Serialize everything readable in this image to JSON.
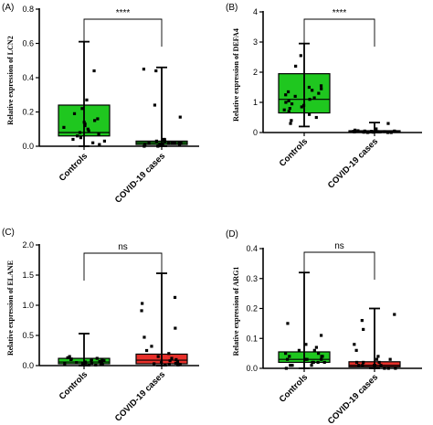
{
  "chart_data": [
    {
      "type": "box",
      "panel_label": "(A)",
      "ylabel": "Relative expression of LCN2",
      "ylim": [
        0,
        0.8
      ],
      "yticks": [
        "0.0",
        "0.2",
        "0.4",
        "0.6",
        "0.8"
      ],
      "ytick_values": [
        0,
        0.2,
        0.4,
        0.6,
        0.8
      ],
      "significance": "****",
      "categories": [
        "Controls",
        "COVID-19 cases"
      ],
      "groups": [
        {
          "name": "Controls",
          "color": "#1fc71f",
          "min": 0.0,
          "q1": 0.06,
          "median": 0.08,
          "q3": 0.24,
          "max": 0.61,
          "points": [
            0.44,
            0.27,
            0.22,
            0.19,
            0.16,
            0.15,
            0.14,
            0.13,
            0.12,
            0.11,
            0.1,
            0.09,
            0.08,
            0.07,
            0.06,
            0.05,
            0.04,
            0.03,
            0.02,
            0.01
          ]
        },
        {
          "name": "COVID-19 cases",
          "color": "#1fc71f",
          "min": 0.0,
          "q1": 0.01,
          "median": 0.02,
          "q3": 0.03,
          "max": 0.46,
          "points": [
            0.45,
            0.44,
            0.24,
            0.17,
            0.04,
            0.04,
            0.03,
            0.03,
            0.03,
            0.03,
            0.02,
            0.02,
            0.02,
            0.02,
            0.02,
            0.02,
            0.01,
            0.01,
            0.01,
            0.01,
            0.01,
            0.01,
            0.0,
            0.0
          ]
        }
      ]
    },
    {
      "type": "box",
      "panel_label": "(B)",
      "ylabel": "Relative expression of DEFA4",
      "ylim": [
        0,
        4
      ],
      "yticks": [
        "0",
        "1",
        "2",
        "3",
        "4"
      ],
      "ytick_values": [
        0,
        1,
        2,
        3,
        4
      ],
      "significance": "****",
      "categories": [
        "Controls",
        "COVID-19 cases"
      ],
      "groups": [
        {
          "name": "Controls",
          "color": "#1fc71f",
          "min": 0.2,
          "q1": 0.65,
          "median": 1.1,
          "q3": 1.95,
          "max": 2.95,
          "points": [
            2.55,
            2.2,
            1.55,
            1.5,
            1.45,
            1.4,
            1.35,
            1.3,
            1.25,
            1.2,
            1.15,
            1.1,
            1.05,
            1.0,
            0.95,
            0.9,
            0.85,
            0.8,
            0.75,
            0.7,
            0.6,
            0.5,
            0.4,
            0.3
          ]
        },
        {
          "name": "COVID-19 cases",
          "color": "#1fc71f",
          "min": 0.0,
          "q1": 0.01,
          "median": 0.03,
          "q3": 0.06,
          "max": 0.33,
          "points": [
            0.3,
            0.12,
            0.08,
            0.06,
            0.05,
            0.05,
            0.04,
            0.04,
            0.03,
            0.03,
            0.03,
            0.02,
            0.02,
            0.02,
            0.01,
            0.01,
            0.01,
            0.0,
            0.0,
            0.0
          ]
        }
      ]
    },
    {
      "type": "box",
      "panel_label": "(C)",
      "ylabel": "Relative expression of ELANE",
      "ylim": [
        0,
        2.0
      ],
      "yticks": [
        "0.0",
        "0.5",
        "1.0",
        "1.5",
        "2.0"
      ],
      "ytick_values": [
        0,
        0.5,
        1.0,
        1.5,
        2.0
      ],
      "significance": "ns",
      "categories": [
        "Controls",
        "COVID-19 cases"
      ],
      "groups": [
        {
          "name": "Controls",
          "color": "#1fc71f",
          "min": 0.0,
          "q1": 0.03,
          "median": 0.06,
          "q3": 0.12,
          "max": 0.53,
          "points": [
            0.15,
            0.13,
            0.12,
            0.11,
            0.1,
            0.1,
            0.09,
            0.08,
            0.08,
            0.07,
            0.06,
            0.06,
            0.05,
            0.05,
            0.04,
            0.04,
            0.03,
            0.03,
            0.02,
            0.02,
            0.01,
            0.01
          ]
        },
        {
          "name": "COVID-19 cases",
          "color": "#e8302a",
          "min": 0.0,
          "q1": 0.03,
          "median": 0.09,
          "q3": 0.19,
          "max": 1.53,
          "points": [
            1.13,
            1.03,
            0.91,
            0.62,
            0.47,
            0.32,
            0.25,
            0.2,
            0.15,
            0.12,
            0.1,
            0.08,
            0.06,
            0.05,
            0.04,
            0.03,
            0.03,
            0.02,
            0.02,
            0.01,
            0.01
          ]
        }
      ]
    },
    {
      "type": "box",
      "panel_label": "(D)",
      "ylabel": "Relative expression of ARG1",
      "ylim": [
        0,
        0.4
      ],
      "yticks": [
        "0.0",
        "0.1",
        "0.2",
        "0.3",
        "0.4"
      ],
      "ytick_values": [
        0,
        0.1,
        0.2,
        0.3,
        0.4
      ],
      "significance": "ns",
      "categories": [
        "Controls",
        "COVID-19 cases"
      ],
      "groups": [
        {
          "name": "Controls",
          "color": "#1fc71f",
          "min": 0.0,
          "q1": 0.02,
          "median": 0.03,
          "q3": 0.055,
          "max": 0.32,
          "points": [
            0.15,
            0.11,
            0.08,
            0.07,
            0.06,
            0.06,
            0.05,
            0.05,
            0.04,
            0.04,
            0.04,
            0.03,
            0.03,
            0.03,
            0.03,
            0.02,
            0.02,
            0.02,
            0.02,
            0.01,
            0.01,
            0.01,
            0.0
          ]
        },
        {
          "name": "COVID-19 cases",
          "color": "#e8302a",
          "min": 0.0,
          "q1": 0.005,
          "median": 0.01,
          "q3": 0.022,
          "max": 0.2,
          "points": [
            0.18,
            0.16,
            0.13,
            0.08,
            0.06,
            0.04,
            0.03,
            0.03,
            0.02,
            0.02,
            0.02,
            0.01,
            0.01,
            0.01,
            0.01,
            0.01,
            0.0,
            0.0,
            0.0
          ]
        }
      ]
    }
  ]
}
